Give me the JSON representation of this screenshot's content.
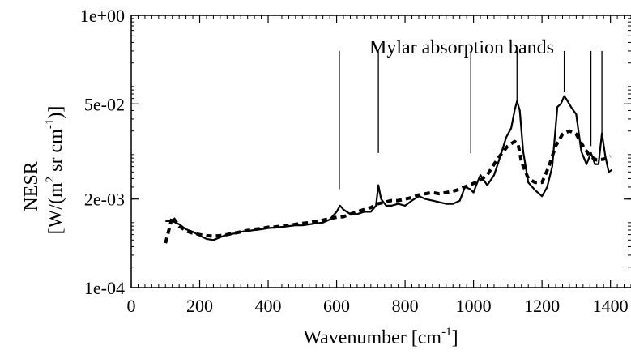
{
  "chart_data": {
    "type": "line",
    "xlabel": "Wavenumber [cm",
    "xlabel_sup": "-1",
    "xlabel_suffix": "]",
    "ylabel_line1": "NESR",
    "ylabel_line2": {
      "p1": "[W/(m",
      "s1": "2",
      "p2": " sr cm",
      "s2": "-1",
      "p3": ")]"
    },
    "xlim": [
      0,
      1460
    ],
    "ylim": [
      0.0001,
      1
    ],
    "yscale": "log",
    "xticks": [
      0,
      200,
      400,
      600,
      800,
      1000,
      1200,
      1400
    ],
    "xtick_labels": [
      "0",
      "200",
      "400",
      "600",
      "800",
      "1000",
      "1200",
      "1400"
    ],
    "yticks": [
      0.0001,
      0.002,
      0.05,
      1
    ],
    "ytick_labels": [
      "1e-04",
      "2e-03",
      "5e-02",
      "1e+00"
    ],
    "annotation": {
      "text": "Mylar absorption bands",
      "band_positions": [
        608,
        722,
        992,
        1127,
        1265,
        1343,
        1375
      ],
      "line_top": 0.3,
      "line_bottoms": [
        0.0028,
        0.0095,
        0.0094,
        0.054,
        0.075,
        0.012,
        0.0165
      ]
    },
    "series": [
      {
        "style": "solid",
        "x": [
          100,
          120,
          140,
          160,
          180,
          200,
          220,
          240,
          260,
          280,
          300,
          320,
          340,
          360,
          380,
          400,
          420,
          440,
          460,
          480,
          500,
          520,
          540,
          560,
          580,
          600,
          610,
          620,
          640,
          660,
          680,
          700,
          715,
          722,
          730,
          745,
          760,
          780,
          800,
          820,
          840,
          860,
          880,
          900,
          920,
          940,
          960,
          975,
          990,
          1000,
          1010,
          1020,
          1040,
          1060,
          1080,
          1095,
          1110,
          1120,
          1127,
          1135,
          1145,
          1160,
          1180,
          1200,
          1215,
          1230,
          1245,
          1255,
          1265,
          1272,
          1285,
          1300,
          1315,
          1330,
          1343,
          1355,
          1365,
          1375,
          1385,
          1395,
          1405
        ],
        "y": [
          0.00095,
          0.00095,
          0.00085,
          0.00072,
          0.00066,
          0.00058,
          0.00052,
          0.0005,
          0.00055,
          0.0006,
          0.00062,
          0.00066,
          0.00068,
          0.0007,
          0.00072,
          0.00075,
          0.00076,
          0.00078,
          0.0008,
          0.00082,
          0.00082,
          0.00085,
          0.00088,
          0.0009,
          0.001,
          0.0013,
          0.0016,
          0.0014,
          0.0012,
          0.0012,
          0.0013,
          0.0013,
          0.0016,
          0.0032,
          0.002,
          0.0016,
          0.0016,
          0.0017,
          0.0016,
          0.0019,
          0.0022,
          0.002,
          0.0019,
          0.0018,
          0.0017,
          0.0017,
          0.0019,
          0.003,
          0.0028,
          0.0025,
          0.0034,
          0.0045,
          0.0032,
          0.0045,
          0.009,
          0.016,
          0.022,
          0.04,
          0.055,
          0.04,
          0.01,
          0.0035,
          0.0027,
          0.0022,
          0.003,
          0.006,
          0.045,
          0.05,
          0.065,
          0.058,
          0.045,
          0.035,
          0.01,
          0.0065,
          0.0095,
          0.0065,
          0.0065,
          0.0185,
          0.0085,
          0.005,
          0.0054
        ]
      },
      {
        "style": "dashed",
        "x": [
          100,
          120,
          140,
          160,
          180,
          200,
          220,
          240,
          260,
          280,
          300,
          320,
          340,
          360,
          380,
          400,
          420,
          440,
          460,
          480,
          500,
          520,
          540,
          560,
          580,
          600,
          620,
          640,
          660,
          680,
          700,
          720,
          740,
          760,
          780,
          800,
          820,
          840,
          860,
          880,
          900,
          920,
          940,
          960,
          980,
          1000,
          1020,
          1040,
          1060,
          1080,
          1100,
          1120,
          1130,
          1140,
          1160,
          1180,
          1200,
          1220,
          1240,
          1260,
          1270,
          1280,
          1300,
          1320,
          1340,
          1360,
          1380,
          1400
        ],
        "y": [
          0.00045,
          0.0011,
          0.0008,
          0.00068,
          0.00063,
          0.0006,
          0.00058,
          0.00057,
          0.00058,
          0.0006,
          0.00063,
          0.00066,
          0.00069,
          0.00072,
          0.00074,
          0.00077,
          0.00078,
          0.0008,
          0.00082,
          0.00085,
          0.00088,
          0.0009,
          0.00094,
          0.00098,
          0.00103,
          0.00108,
          0.0011,
          0.0012,
          0.0013,
          0.0014,
          0.0015,
          0.0017,
          0.0018,
          0.0019,
          0.0019,
          0.002,
          0.0021,
          0.0023,
          0.0024,
          0.0025,
          0.0024,
          0.0025,
          0.0026,
          0.0028,
          0.0031,
          0.0034,
          0.0038,
          0.0045,
          0.0065,
          0.009,
          0.012,
          0.014,
          0.013,
          0.007,
          0.004,
          0.0035,
          0.0035,
          0.006,
          0.012,
          0.018,
          0.019,
          0.02,
          0.018,
          0.012,
          0.0085,
          0.0075,
          0.0077,
          0.0085
        ]
      }
    ]
  }
}
